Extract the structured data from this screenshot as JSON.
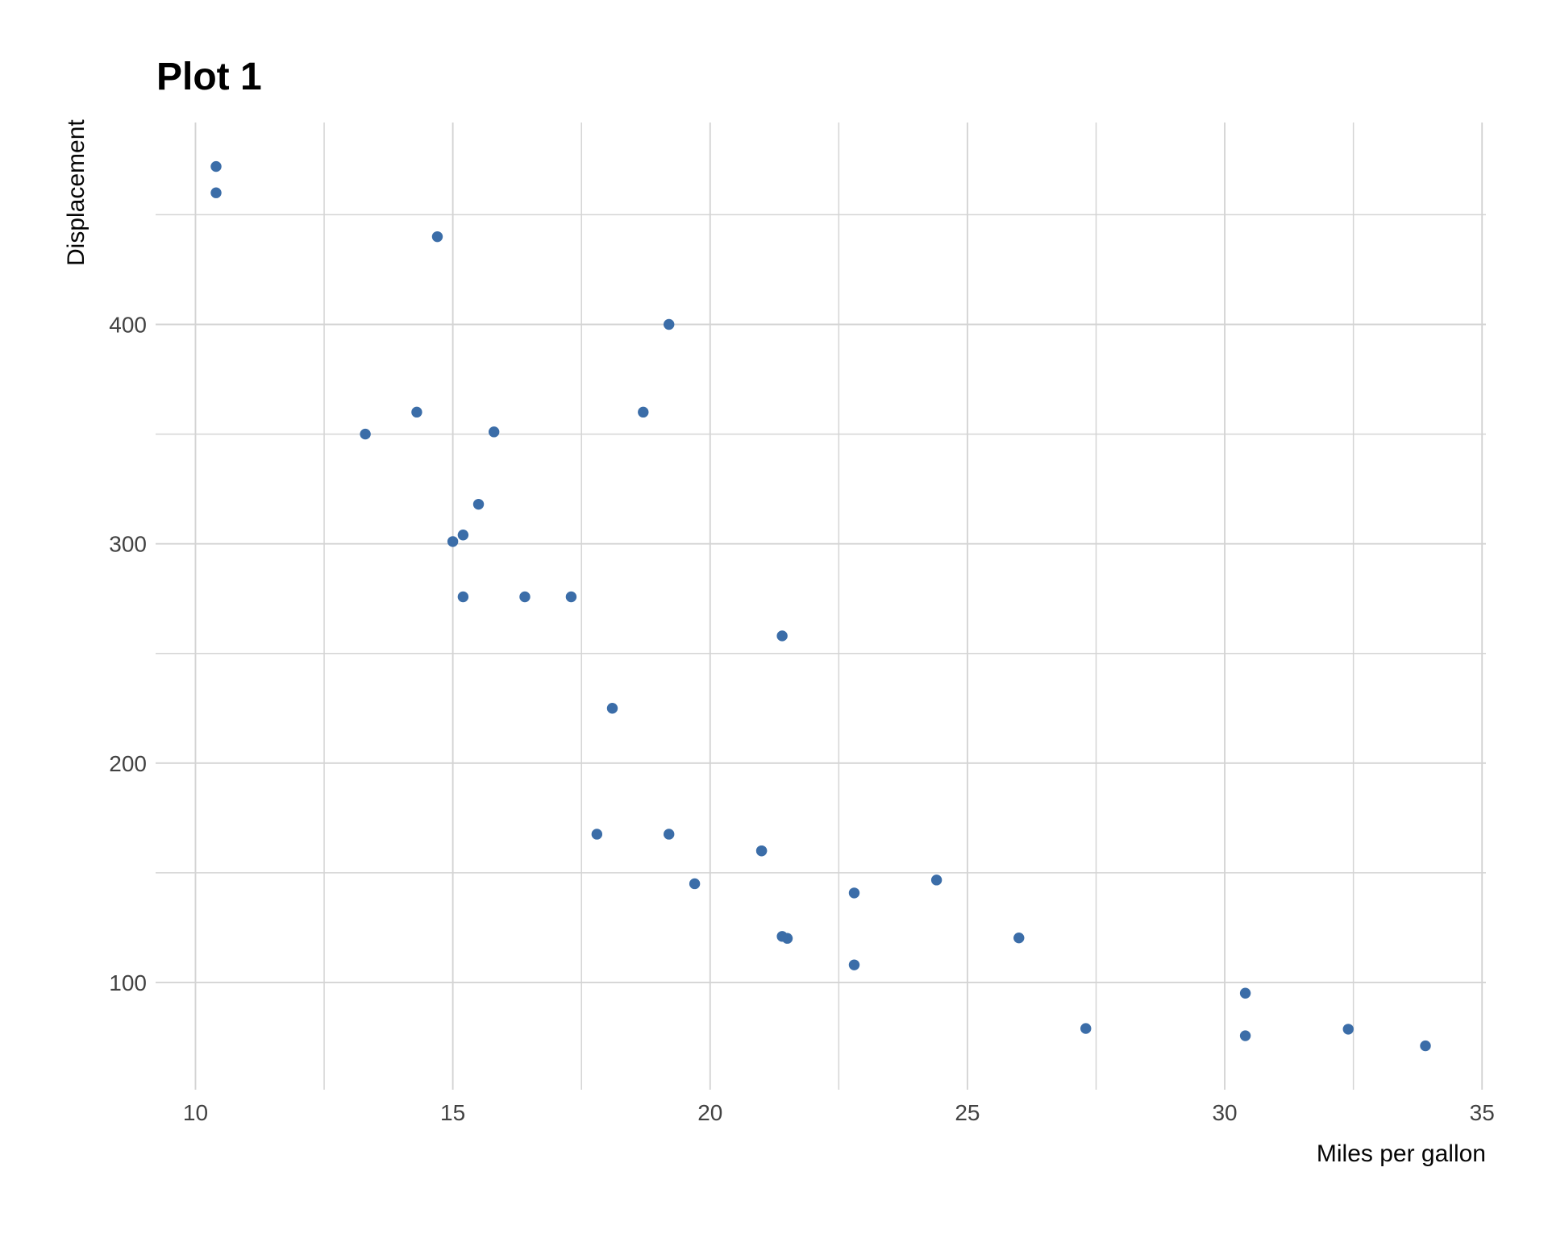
{
  "figure": {
    "title": "Plot 1"
  },
  "chart_data": {
    "type": "scatter",
    "title": "Plot 1",
    "xlabel": "Miles per gallon",
    "ylabel": "Displacement",
    "x_name": "mpg",
    "y_name": "disp",
    "xlim": [
      9.225,
      35.075
    ],
    "ylim": [
      51.1,
      492.05
    ],
    "x_major_ticks": [
      10,
      15,
      20,
      25,
      30,
      35
    ],
    "x_minor_gridlines": [
      12.5,
      17.5,
      22.5,
      27.5,
      32.5
    ],
    "y_major_ticks": [
      100,
      200,
      300,
      400
    ],
    "y_minor_gridlines": [
      150,
      250,
      350,
      450
    ],
    "grid": "on",
    "legend": "none",
    "points": [
      [
        21.0,
        160.0
      ],
      [
        21.0,
        160.0
      ],
      [
        22.8,
        108.0
      ],
      [
        21.4,
        258.0
      ],
      [
        18.7,
        360.0
      ],
      [
        18.1,
        225.0
      ],
      [
        14.3,
        360.0
      ],
      [
        24.4,
        146.7
      ],
      [
        22.8,
        140.8
      ],
      [
        19.2,
        167.6
      ],
      [
        17.8,
        167.6
      ],
      [
        16.4,
        275.8
      ],
      [
        17.3,
        275.8
      ],
      [
        15.2,
        275.8
      ],
      [
        10.4,
        472.0
      ],
      [
        10.4,
        460.0
      ],
      [
        14.7,
        440.0
      ],
      [
        32.4,
        78.7
      ],
      [
        30.4,
        75.7
      ],
      [
        33.9,
        71.1
      ],
      [
        21.5,
        120.1
      ],
      [
        15.5,
        318.0
      ],
      [
        15.2,
        304.0
      ],
      [
        13.3,
        350.0
      ],
      [
        19.2,
        400.0
      ],
      [
        27.3,
        79.0
      ],
      [
        26.0,
        120.3
      ],
      [
        30.4,
        95.1
      ],
      [
        15.8,
        351.0
      ],
      [
        19.7,
        145.0
      ],
      [
        15.0,
        301.0
      ],
      [
        21.4,
        121.0
      ]
    ],
    "style": {
      "background_color": "#ffffff",
      "point_color": "#3b6da8",
      "point_radius": 6.7,
      "grid_color": "#d4d4d4",
      "major_grid_width": 1.9,
      "minor_grid_width": 1.5,
      "tick_label_color": "#424242",
      "tick_label_size": 28,
      "axis_title_color": "#060606",
      "title_color": "#000000"
    }
  }
}
